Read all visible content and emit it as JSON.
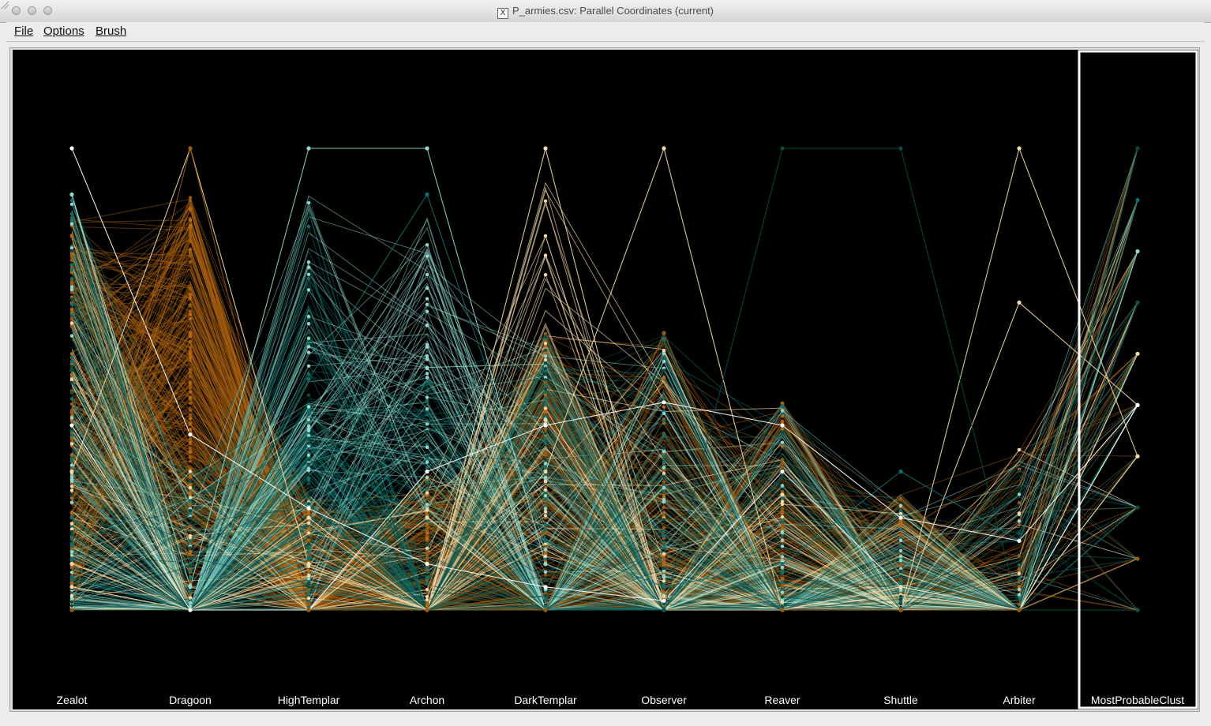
{
  "window": {
    "title": "P_armies.csv: Parallel Coordinates (current)"
  },
  "menu": {
    "items": [
      {
        "label": "File"
      },
      {
        "label": "Options"
      },
      {
        "label": "Brush"
      }
    ]
  },
  "chart_data": {
    "type": "parallel-coordinates",
    "axes": [
      "Zealot",
      "Dragoon",
      "HighTemplar",
      "Archon",
      "DarkTemplar",
      "Observer",
      "Reaver",
      "Shuttle",
      "Arbiter",
      "MostProbableClust"
    ],
    "selected_axis": "MostProbableClust",
    "background": "#000000",
    "colors": {
      "brown": "#9a5a12",
      "dark_orange": "#b8680f",
      "teal": "#0e6f6c",
      "light_cyan": "#8fd9d0",
      "cream": "#f3d9a7",
      "white": "#ffffff",
      "dark_teal": "#0a4a42"
    }
  }
}
